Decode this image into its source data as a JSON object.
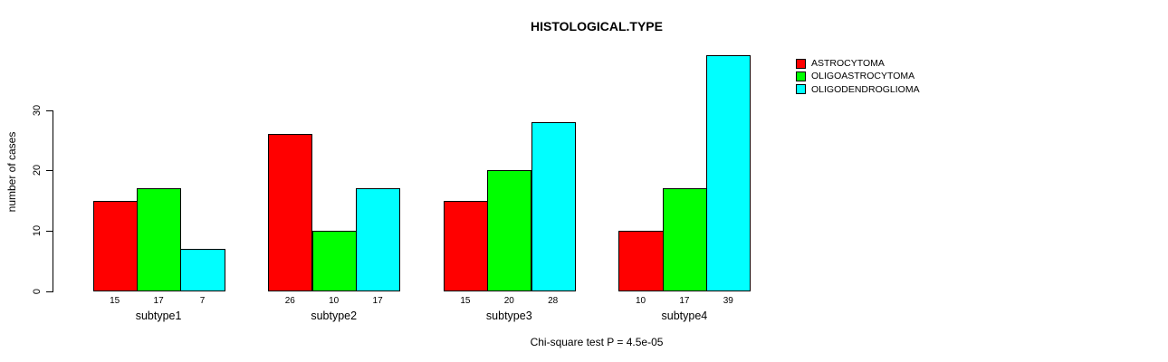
{
  "chart_data": {
    "type": "bar",
    "title": "HISTOLOGICAL.TYPE",
    "xlabel": "",
    "ylabel": "number of cases",
    "categories": [
      "subtype1",
      "subtype2",
      "subtype3",
      "subtype4"
    ],
    "series": [
      {
        "name": "ASTROCYTOMA",
        "color": "#ff0000",
        "values": [
          15,
          26,
          15,
          10
        ]
      },
      {
        "name": "OLIGOASTROCYTOMA",
        "color": "#00ff00",
        "values": [
          17,
          10,
          20,
          17
        ]
      },
      {
        "name": "OLIGODENDROGLIOMA",
        "color": "#00ffff",
        "values": [
          7,
          17,
          28,
          39
        ]
      }
    ],
    "bar_value_labels": [
      [
        "15",
        "17",
        "7"
      ],
      [
        "26",
        "10",
        "17"
      ],
      [
        "15",
        "20",
        "28"
      ],
      [
        "10",
        "17",
        "39"
      ]
    ],
    "yticks": [
      "0",
      "10",
      "20",
      "30"
    ],
    "ytick_values": [
      0,
      10,
      20,
      30
    ],
    "ylim": [
      0,
      39
    ],
    "grid": false,
    "legend_position": "top-right",
    "annotation": "Chi-square test P = 4.5e-05",
    "axis_color": "#000000",
    "background_color": "#ffffff"
  }
}
